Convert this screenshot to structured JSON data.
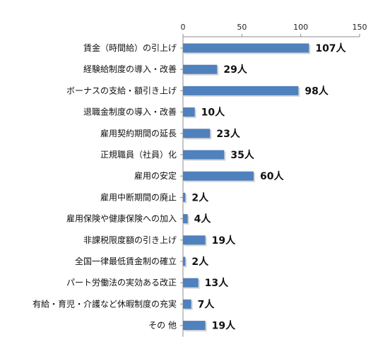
{
  "chart_data": {
    "type": "bar",
    "orientation": "horizontal",
    "categories": [
      "賃金（時間給）の引上げ",
      "経験給制度の導入・改善",
      "ボーナスの支給・額引き上げ",
      "退職金制度の導入・改善",
      "雇用契約期間の延長",
      "正規職員（社員）化",
      "雇用の安定",
      "雇用中断期間の廃止",
      "雇用保険や健康保険への加入",
      "非課税限度額の引き上げ",
      "全国一律最低賃金制の確立",
      "パート労働法の実効ある改正",
      "有給・育児・介護など休暇制度の充実",
      "その 他"
    ],
    "values": [
      107,
      29,
      98,
      10,
      23,
      35,
      60,
      2,
      4,
      19,
      2,
      13,
      7,
      19
    ],
    "data_labels": [
      "107人",
      "29人",
      "98人",
      "10人",
      "23人",
      "35人",
      "60人",
      "2人",
      "4人",
      "19人",
      "2人",
      "13人",
      "7人",
      "19人"
    ],
    "xlim": [
      0,
      150
    ],
    "x_ticks": [
      "0",
      "50",
      "100",
      "150"
    ],
    "axis_position": "top",
    "grid": false,
    "legend": "none",
    "bar_color": "#4F81BD"
  }
}
